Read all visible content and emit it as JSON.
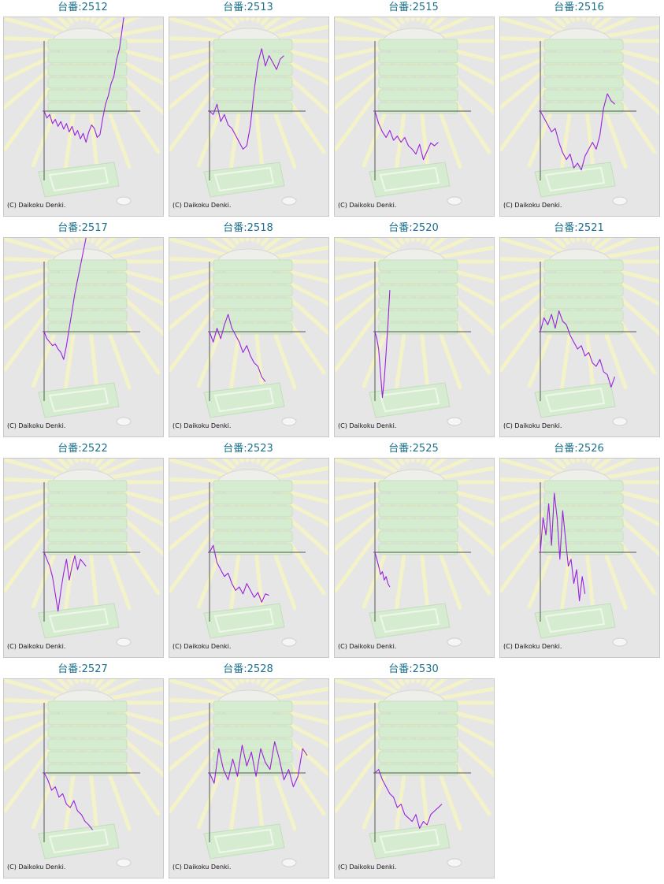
{
  "copyright": "(C) Daikoku Denki.",
  "title_prefix": "台番:",
  "colors": {
    "line": "#9922dd",
    "axis": "#555555",
    "title": "#1a6f8a",
    "background": "#e6e6e6",
    "ray": "#f4f2c8",
    "machine": "#d6ecd0"
  },
  "chart_data": [
    {
      "type": "line",
      "title": "台番:2512",
      "x": [
        0,
        3,
        6,
        9,
        12,
        15,
        18,
        21,
        24,
        27,
        30,
        33,
        36,
        39,
        42,
        45,
        48,
        51,
        54,
        57,
        60,
        63,
        66,
        69,
        72,
        75,
        78,
        81,
        84,
        87,
        90
      ],
      "values": [
        0,
        -0.1,
        -0.05,
        -0.18,
        -0.12,
        -0.22,
        -0.15,
        -0.26,
        -0.18,
        -0.3,
        -0.22,
        -0.35,
        -0.28,
        -0.4,
        -0.32,
        -0.45,
        -0.3,
        -0.2,
        -0.25,
        -0.38,
        -0.34,
        -0.1,
        0.1,
        0.22,
        0.4,
        0.5,
        0.75,
        0.9,
        1.2,
        1.5,
        1.55
      ]
    },
    {
      "type": "line",
      "title": "台番:2513",
      "x": [
        0,
        4,
        8,
        12,
        16,
        20,
        24,
        28,
        32,
        36,
        40,
        44,
        48,
        52,
        56,
        60,
        64,
        68,
        72,
        76,
        80
      ],
      "values": [
        0,
        -0.05,
        0.1,
        -0.15,
        -0.05,
        -0.2,
        -0.25,
        -0.35,
        -0.45,
        -0.55,
        -0.5,
        -0.2,
        0.3,
        0.7,
        0.9,
        0.65,
        0.8,
        0.7,
        0.6,
        0.75,
        0.8
      ]
    },
    {
      "type": "line",
      "title": "台番:2515",
      "x": [
        0,
        4,
        8,
        12,
        16,
        20,
        24,
        28,
        32,
        36,
        40,
        44,
        48,
        52,
        56,
        60,
        64,
        68
      ],
      "values": [
        0,
        -0.18,
        -0.3,
        -0.38,
        -0.28,
        -0.42,
        -0.36,
        -0.45,
        -0.38,
        -0.5,
        -0.55,
        -0.62,
        -0.48,
        -0.7,
        -0.58,
        -0.46,
        -0.5,
        -0.45
      ]
    },
    {
      "type": "line",
      "title": "台番:2516",
      "x": [
        0,
        4,
        8,
        12,
        16,
        20,
        24,
        28,
        32,
        36,
        40,
        44,
        48,
        52,
        56,
        60,
        64,
        68,
        72,
        76,
        80
      ],
      "values": [
        0,
        -0.1,
        -0.2,
        -0.3,
        -0.25,
        -0.45,
        -0.6,
        -0.7,
        -0.62,
        -0.82,
        -0.75,
        -0.85,
        -0.65,
        -0.55,
        -0.45,
        -0.55,
        -0.35,
        0.05,
        0.25,
        0.15,
        0.1
      ]
    },
    {
      "type": "line",
      "title": "台番:2517",
      "x": [
        0,
        3,
        6,
        9,
        12,
        15,
        18,
        21,
        24,
        27,
        30,
        33,
        36,
        39,
        42,
        45,
        48,
        51
      ],
      "values": [
        0,
        -0.1,
        -0.15,
        -0.2,
        -0.18,
        -0.25,
        -0.3,
        -0.4,
        -0.2,
        0.05,
        0.3,
        0.55,
        0.75,
        0.95,
        1.15,
        1.35,
        1.55,
        1.75
      ]
    },
    {
      "type": "line",
      "title": "台番:2518",
      "x": [
        0,
        4,
        8,
        12,
        16,
        20,
        24,
        28,
        32,
        36,
        40,
        44,
        48,
        52,
        56,
        60
      ],
      "values": [
        0,
        -0.15,
        0.05,
        -0.1,
        0.1,
        0.25,
        0.05,
        -0.05,
        -0.15,
        -0.3,
        -0.2,
        -0.35,
        -0.45,
        -0.5,
        -0.65,
        -0.72
      ]
    },
    {
      "type": "line",
      "title": "台番:2520",
      "x": [
        0,
        2,
        4,
        6,
        8,
        10,
        12,
        14,
        16
      ],
      "values": [
        0,
        -0.1,
        -0.25,
        -0.6,
        -0.95,
        -0.7,
        -0.3,
        0.1,
        0.6
      ]
    },
    {
      "type": "line",
      "title": "台番:2521",
      "x": [
        0,
        4,
        8,
        12,
        16,
        20,
        24,
        28,
        32,
        36,
        40,
        44,
        48,
        52,
        56,
        60,
        64,
        68,
        72,
        76,
        80
      ],
      "values": [
        0,
        0.2,
        0.1,
        0.25,
        0.05,
        0.3,
        0.15,
        0.1,
        -0.05,
        -0.15,
        -0.25,
        -0.2,
        -0.35,
        -0.3,
        -0.45,
        -0.5,
        -0.4,
        -0.58,
        -0.62,
        -0.8,
        -0.65
      ]
    },
    {
      "type": "line",
      "title": "台番:2522",
      "x": [
        0,
        3,
        6,
        9,
        12,
        15,
        18,
        21,
        24,
        27,
        30,
        33,
        36,
        39,
        42,
        45
      ],
      "values": [
        0,
        -0.1,
        -0.2,
        -0.35,
        -0.6,
        -0.85,
        -0.55,
        -0.3,
        -0.1,
        -0.4,
        -0.2,
        -0.05,
        -0.25,
        -0.1,
        -0.15,
        -0.2
      ]
    },
    {
      "type": "line",
      "title": "台番:2523",
      "x": [
        0,
        4,
        8,
        12,
        16,
        20,
        24,
        28,
        32,
        36,
        40,
        44,
        48,
        52,
        56,
        60,
        64
      ],
      "values": [
        0,
        0.1,
        -0.15,
        -0.25,
        -0.35,
        -0.3,
        -0.45,
        -0.55,
        -0.5,
        -0.6,
        -0.45,
        -0.55,
        -0.65,
        -0.58,
        -0.72,
        -0.6,
        -0.62
      ]
    },
    {
      "type": "line",
      "title": "台番:2525",
      "x": [
        0,
        2,
        4,
        6,
        8,
        10,
        12,
        14,
        16
      ],
      "values": [
        0,
        -0.1,
        -0.2,
        -0.32,
        -0.28,
        -0.4,
        -0.35,
        -0.45,
        -0.5
      ]
    },
    {
      "type": "line",
      "title": "台番:2526",
      "x": [
        0,
        3,
        6,
        9,
        12,
        15,
        18,
        21,
        24,
        27,
        30,
        33,
        36,
        39,
        42,
        45,
        48
      ],
      "values": [
        0,
        0.5,
        0.25,
        0.7,
        0.1,
        0.85,
        0.5,
        -0.1,
        0.6,
        0.2,
        -0.2,
        -0.1,
        -0.45,
        -0.25,
        -0.7,
        -0.35,
        -0.6
      ]
    },
    {
      "type": "line",
      "title": "台番:2527",
      "x": [
        0,
        4,
        8,
        12,
        16,
        20,
        24,
        28,
        32,
        36,
        40,
        44,
        48,
        52
      ],
      "values": [
        0,
        -0.1,
        -0.25,
        -0.2,
        -0.35,
        -0.3,
        -0.45,
        -0.5,
        -0.4,
        -0.55,
        -0.6,
        -0.7,
        -0.75,
        -0.82
      ]
    },
    {
      "type": "line",
      "title": "台番:2528",
      "x": [
        0,
        5,
        10,
        15,
        20,
        25,
        30,
        35,
        40,
        45,
        50,
        55,
        60,
        65,
        70,
        75,
        80,
        85,
        90,
        95,
        100,
        105
      ],
      "values": [
        0,
        -0.15,
        0.35,
        0.05,
        -0.1,
        0.2,
        -0.05,
        0.4,
        0.1,
        0.3,
        -0.05,
        0.35,
        0.15,
        0.05,
        0.45,
        0.2,
        -0.1,
        0.05,
        -0.2,
        -0.05,
        0.35,
        0.25
      ]
    },
    {
      "type": "line",
      "title": "台番:2530",
      "x": [
        0,
        4,
        8,
        12,
        16,
        20,
        24,
        28,
        32,
        36,
        40,
        44,
        48,
        52,
        56,
        60,
        64,
        68,
        72
      ],
      "values": [
        0,
        0.05,
        -0.1,
        -0.2,
        -0.3,
        -0.35,
        -0.5,
        -0.45,
        -0.6,
        -0.65,
        -0.7,
        -0.6,
        -0.8,
        -0.7,
        -0.75,
        -0.6,
        -0.55,
        -0.5,
        -0.45
      ]
    }
  ]
}
